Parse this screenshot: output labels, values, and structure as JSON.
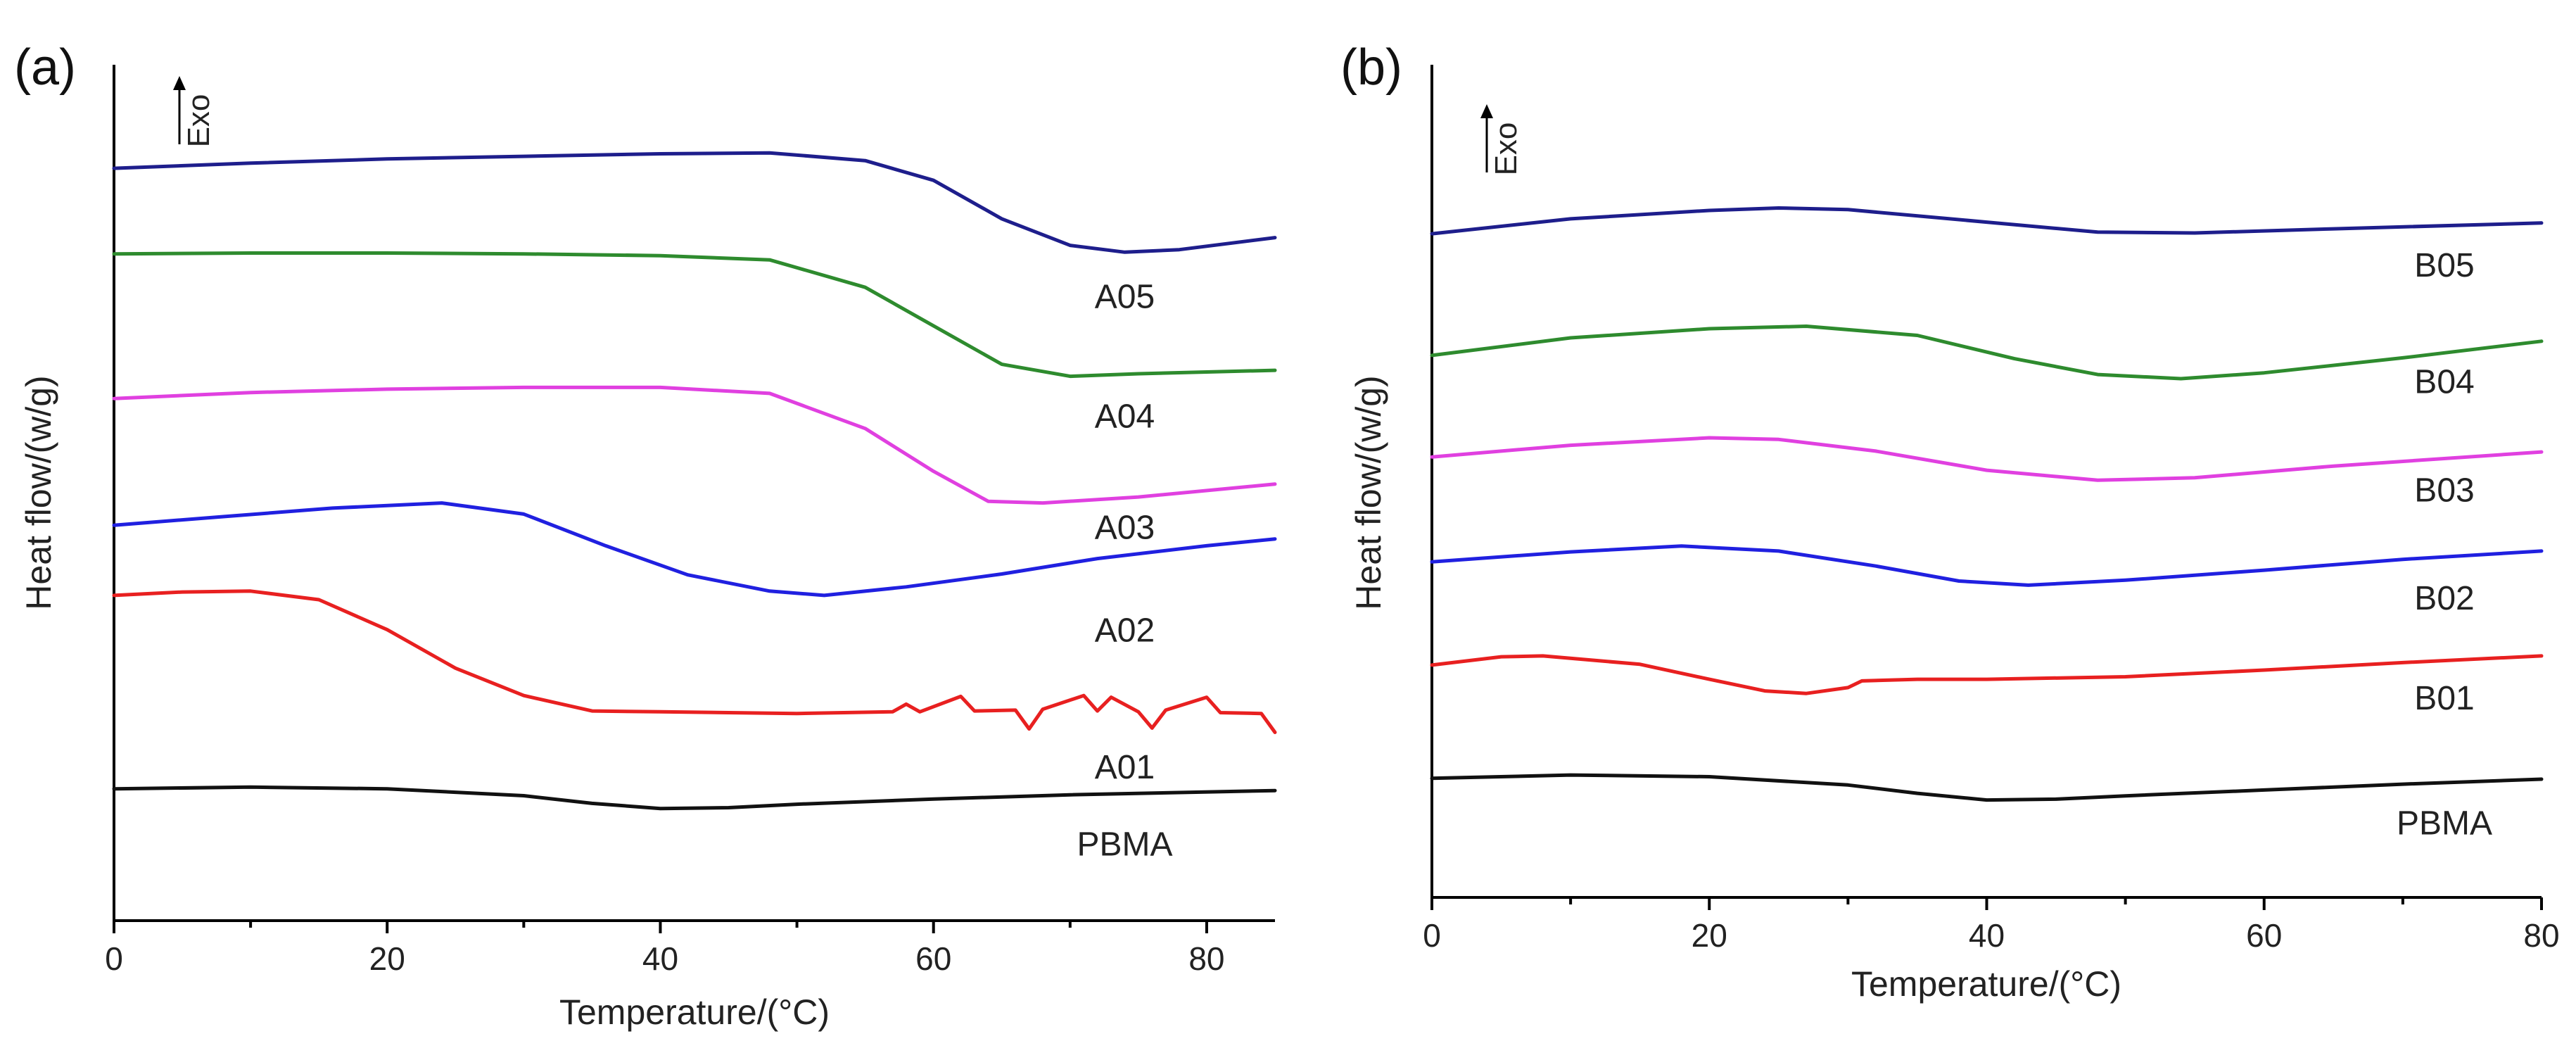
{
  "chart_data": [
    {
      "type": "line",
      "panel_label": "(a)",
      "title": "",
      "xlabel": "Temperature/(°C)",
      "ylabel": "Heat flow/(w/g)",
      "exo_label": "Exo",
      "xlim": [
        0,
        85
      ],
      "ylim": [
        0,
        100
      ],
      "xticks": [
        0,
        20,
        40,
        60,
        80
      ],
      "xtick_labels": [
        "0",
        "20",
        "40",
        "60",
        "80"
      ],
      "grid": false,
      "legend": "labels next to curves",
      "series": [
        {
          "name": "A05",
          "label": "A05",
          "color": "#1e1e8c",
          "label_x": 74,
          "label_y": 73,
          "points": [
            [
              0,
              87.9
            ],
            [
              10,
              88.5
            ],
            [
              20,
              89.0
            ],
            [
              30,
              89.3
            ],
            [
              40,
              89.6
            ],
            [
              48,
              89.7
            ],
            [
              55,
              88.8
            ],
            [
              60,
              86.5
            ],
            [
              65,
              82.0
            ],
            [
              70,
              78.9
            ],
            [
              74,
              78.1
            ],
            [
              78,
              78.4
            ],
            [
              85,
              79.8
            ]
          ]
        },
        {
          "name": "A04",
          "label": "A04",
          "color": "#2e8b2e",
          "label_x": 74,
          "label_y": 59,
          "points": [
            [
              0,
              77.9
            ],
            [
              10,
              78.0
            ],
            [
              20,
              78.0
            ],
            [
              30,
              77.9
            ],
            [
              40,
              77.7
            ],
            [
              48,
              77.2
            ],
            [
              55,
              74.0
            ],
            [
              60,
              69.5
            ],
            [
              65,
              65.0
            ],
            [
              70,
              63.6
            ],
            [
              75,
              63.9
            ],
            [
              80,
              64.1
            ],
            [
              85,
              64.3
            ]
          ]
        },
        {
          "name": "A03",
          "label": "A03",
          "color": "#e040e0",
          "label_x": 74,
          "label_y": 46,
          "points": [
            [
              0,
              61.0
            ],
            [
              10,
              61.7
            ],
            [
              20,
              62.1
            ],
            [
              30,
              62.3
            ],
            [
              40,
              62.3
            ],
            [
              48,
              61.6
            ],
            [
              55,
              57.5
            ],
            [
              60,
              52.5
            ],
            [
              64,
              49.0
            ],
            [
              68,
              48.8
            ],
            [
              75,
              49.5
            ],
            [
              85,
              51.0
            ]
          ]
        },
        {
          "name": "A02",
          "label": "A02",
          "color": "#2020e0",
          "label_x": 74,
          "label_y": 34,
          "points": [
            [
              0,
              46.2
            ],
            [
              8,
              47.2
            ],
            [
              16,
              48.2
            ],
            [
              24,
              48.8
            ],
            [
              30,
              47.5
            ],
            [
              36,
              43.8
            ],
            [
              42,
              40.4
            ],
            [
              48,
              38.5
            ],
            [
              52,
              38.0
            ],
            [
              58,
              39.0
            ],
            [
              65,
              40.5
            ],
            [
              72,
              42.3
            ],
            [
              80,
              43.8
            ],
            [
              85,
              44.6
            ]
          ]
        },
        {
          "name": "A01",
          "label": "A01",
          "color": "#e82020",
          "label_x": 74,
          "label_y": 18,
          "points": [
            [
              0,
              38.0
            ],
            [
              5,
              38.4
            ],
            [
              10,
              38.5
            ],
            [
              15,
              37.5
            ],
            [
              20,
              34.0
            ],
            [
              25,
              29.5
            ],
            [
              30,
              26.3
            ],
            [
              35,
              24.5
            ],
            [
              40,
              24.4
            ],
            [
              50,
              24.2
            ],
            [
              57,
              24.4
            ],
            [
              58,
              25.3
            ],
            [
              59,
              24.4
            ],
            [
              62,
              26.2
            ],
            [
              63,
              24.5
            ],
            [
              66,
              24.6
            ],
            [
              67,
              22.4
            ],
            [
              68,
              24.7
            ],
            [
              71,
              26.3
            ],
            [
              72,
              24.5
            ],
            [
              73,
              26.1
            ],
            [
              75,
              24.4
            ],
            [
              76,
              22.5
            ],
            [
              77,
              24.6
            ],
            [
              80,
              26.1
            ],
            [
              81,
              24.3
            ],
            [
              84,
              24.2
            ],
            [
              85,
              22.0
            ]
          ]
        },
        {
          "name": "PBMA",
          "label": "PBMA",
          "color": "#111111",
          "label_x": 74,
          "label_y": 9,
          "points": [
            [
              0,
              15.4
            ],
            [
              10,
              15.6
            ],
            [
              20,
              15.4
            ],
            [
              30,
              14.6
            ],
            [
              35,
              13.7
            ],
            [
              40,
              13.1
            ],
            [
              45,
              13.2
            ],
            [
              50,
              13.6
            ],
            [
              60,
              14.2
            ],
            [
              70,
              14.7
            ],
            [
              85,
              15.2
            ]
          ]
        }
      ]
    },
    {
      "type": "line",
      "panel_label": "(b)",
      "title": "",
      "xlabel": "Temperature/(°C)",
      "ylabel": "Heat flow/(w/g)",
      "exo_label": "Exo",
      "xlim": [
        0,
        80
      ],
      "ylim": [
        0,
        100
      ],
      "xticks": [
        0,
        20,
        40,
        60,
        80
      ],
      "xtick_labels": [
        "0",
        "20",
        "40",
        "60",
        "80"
      ],
      "grid": false,
      "legend": "labels next to curves",
      "series": [
        {
          "name": "B05",
          "label": "B05",
          "color": "#1e1e8c",
          "label_x": 73,
          "label_y": 76,
          "points": [
            [
              0,
              79.7
            ],
            [
              10,
              81.5
            ],
            [
              20,
              82.5
            ],
            [
              25,
              82.8
            ],
            [
              30,
              82.6
            ],
            [
              40,
              81.1
            ],
            [
              48,
              79.9
            ],
            [
              55,
              79.8
            ],
            [
              65,
              80.3
            ],
            [
              80,
              81.0
            ]
          ]
        },
        {
          "name": "B04",
          "label": "B04",
          "color": "#2e8b2e",
          "label_x": 73,
          "label_y": 62,
          "points": [
            [
              0,
              65.1
            ],
            [
              10,
              67.2
            ],
            [
              20,
              68.3
            ],
            [
              27,
              68.6
            ],
            [
              35,
              67.5
            ],
            [
              42,
              64.7
            ],
            [
              48,
              62.8
            ],
            [
              54,
              62.3
            ],
            [
              60,
              63.0
            ],
            [
              70,
              64.8
            ],
            [
              80,
              66.8
            ]
          ]
        },
        {
          "name": "B03",
          "label": "B03",
          "color": "#e040e0",
          "label_x": 73,
          "label_y": 49,
          "points": [
            [
              0,
              52.9
            ],
            [
              10,
              54.3
            ],
            [
              20,
              55.2
            ],
            [
              25,
              55.0
            ],
            [
              32,
              53.6
            ],
            [
              40,
              51.3
            ],
            [
              48,
              50.1
            ],
            [
              55,
              50.4
            ],
            [
              65,
              51.8
            ],
            [
              80,
              53.5
            ]
          ]
        },
        {
          "name": "B02",
          "label": "B02",
          "color": "#2020e0",
          "label_x": 73,
          "label_y": 36,
          "points": [
            [
              0,
              40.3
            ],
            [
              10,
              41.5
            ],
            [
              18,
              42.2
            ],
            [
              25,
              41.6
            ],
            [
              32,
              39.8
            ],
            [
              38,
              38.0
            ],
            [
              43,
              37.5
            ],
            [
              50,
              38.1
            ],
            [
              60,
              39.3
            ],
            [
              70,
              40.6
            ],
            [
              80,
              41.6
            ]
          ]
        },
        {
          "name": "B01",
          "label": "B01",
          "color": "#e82020",
          "label_x": 73,
          "label_y": 24,
          "points": [
            [
              0,
              27.9
            ],
            [
              5,
              28.9
            ],
            [
              8,
              29.0
            ],
            [
              15,
              28.0
            ],
            [
              20,
              26.2
            ],
            [
              24,
              24.8
            ],
            [
              27,
              24.5
            ],
            [
              30,
              25.2
            ],
            [
              31,
              26.0
            ],
            [
              35,
              26.2
            ],
            [
              40,
              26.2
            ],
            [
              50,
              26.5
            ],
            [
              60,
              27.3
            ],
            [
              70,
              28.2
            ],
            [
              80,
              29.0
            ]
          ]
        },
        {
          "name": "PBMA",
          "label": "PBMA",
          "color": "#111111",
          "label_x": 73,
          "label_y": 9,
          "points": [
            [
              0,
              14.3
            ],
            [
              10,
              14.7
            ],
            [
              20,
              14.5
            ],
            [
              30,
              13.5
            ],
            [
              35,
              12.5
            ],
            [
              40,
              11.7
            ],
            [
              45,
              11.8
            ],
            [
              50,
              12.2
            ],
            [
              60,
              12.9
            ],
            [
              70,
              13.6
            ],
            [
              80,
              14.2
            ]
          ]
        }
      ]
    }
  ]
}
